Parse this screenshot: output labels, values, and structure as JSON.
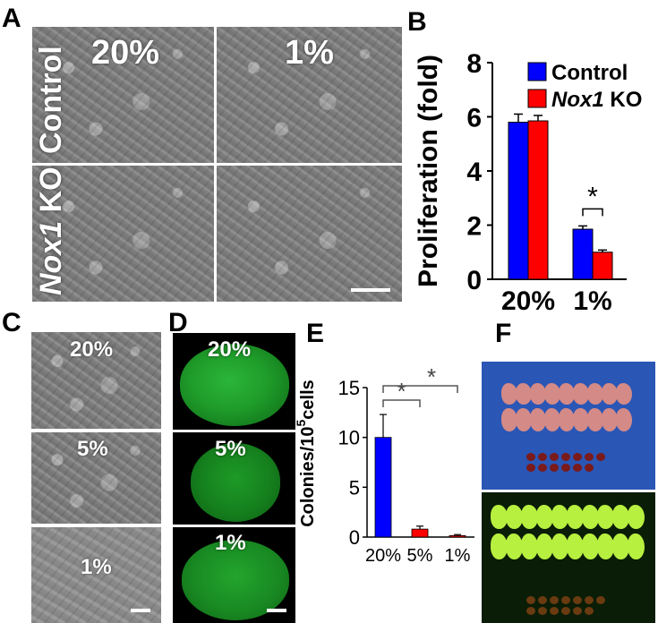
{
  "panels": {
    "A": {
      "letter": "A",
      "col_labels": [
        "20%",
        "1%"
      ],
      "row_labels": [
        "Control",
        "Nox1 KO"
      ],
      "row2_label_italic": "Nox1",
      "row2_label_rest": " KO"
    },
    "B": {
      "letter": "B",
      "significance": "*"
    },
    "C": {
      "letter": "C",
      "labels": [
        "20%",
        "5%",
        "1%"
      ]
    },
    "D": {
      "letter": "D",
      "labels": [
        "20%",
        "5%",
        "1%"
      ]
    },
    "E": {
      "letter": "E",
      "significance_1": "*",
      "significance_2": "*",
      "ylabel_main": "Colonies/10",
      "ylabel_sup": "5",
      "ylabel_tail": "cells"
    },
    "F": {
      "letter": "F"
    }
  },
  "chart_data": [
    {
      "panel": "B",
      "type": "bar",
      "categories": [
        "20%",
        "1%"
      ],
      "series": [
        {
          "name": "Control",
          "color": "#0000ff",
          "values": [
            5.8,
            1.85
          ],
          "errors": [
            0.3,
            0.12
          ]
        },
        {
          "name": "Nox1 KO",
          "name_italic": "Nox1",
          "name_rest": " KO",
          "color": "#ff0000",
          "values": [
            5.85,
            1.0
          ],
          "errors": [
            0.2,
            0.08
          ]
        }
      ],
      "ylabel": "Proliferation (fold)",
      "ylim": [
        0,
        8
      ],
      "yticks": [
        "0",
        "2",
        "4",
        "6",
        "8"
      ],
      "legend": "top-right",
      "grid": false
    },
    {
      "panel": "E",
      "type": "bar",
      "categories": [
        "20%",
        "5%",
        "1%"
      ],
      "values": [
        10.0,
        0.8,
        0.15
      ],
      "errors": [
        2.3,
        0.3,
        0.1
      ],
      "colors": [
        "#0000ff",
        "#ff0000",
        "#ff0000"
      ],
      "ylim": [
        0,
        15
      ],
      "yticks": [
        "0",
        "5",
        "10",
        "15"
      ],
      "grid": false
    }
  ]
}
